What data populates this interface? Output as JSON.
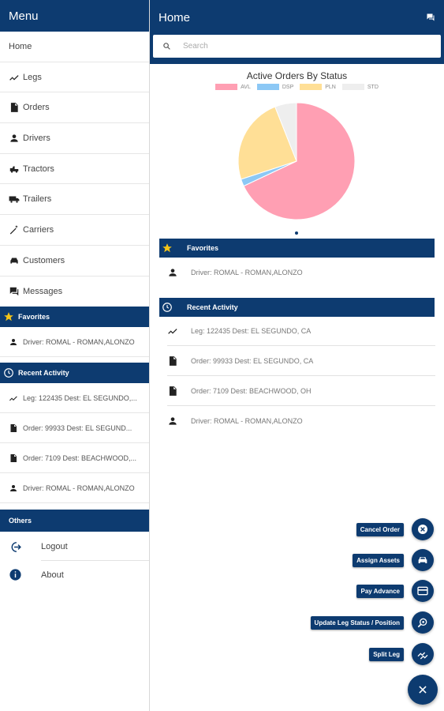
{
  "drawer": {
    "title": "Menu",
    "nav": [
      {
        "label": "Home",
        "icon": ""
      },
      {
        "label": "Legs",
        "icon": "trend-icon"
      },
      {
        "label": "Orders",
        "icon": "document-icon"
      },
      {
        "label": "Drivers",
        "icon": "person-icon"
      },
      {
        "label": "Tractors",
        "icon": "tractor-icon"
      },
      {
        "label": "Trailers",
        "icon": "truck-icon"
      },
      {
        "label": "Carriers",
        "icon": "wand-icon"
      },
      {
        "label": "Customers",
        "icon": "car-icon"
      },
      {
        "label": "Messages",
        "icon": "chat-icon"
      }
    ],
    "favorites": {
      "title": "Favorites",
      "items": [
        "Driver: ROMAL - ROMAN,ALONZO"
      ]
    },
    "recent": {
      "title": "Recent Activity",
      "items": [
        "Leg: 122435 Dest: EL SEGUNDO,...",
        "Order: 99933 Dest: EL SEGUND...",
        "Order: 7109 Dest: BEACHWOOD,...",
        "Driver: ROMAL - ROMAN,ALONZO"
      ]
    },
    "others": {
      "title": "Others",
      "items": [
        {
          "label": "Logout",
          "icon": "logout-icon"
        },
        {
          "label": "About",
          "icon": "info-icon"
        }
      ]
    }
  },
  "main": {
    "title": "Home",
    "search_placeholder": "Search",
    "favorites": {
      "title": "Favorites",
      "items": [
        "Driver: ROMAL - ROMAN,ALONZO"
      ]
    },
    "recent": {
      "title": "Recent Activity",
      "items": [
        "Leg: 122435 Dest: EL SEGUNDO, CA",
        "Order: 99933 Dest: EL SEGUNDO, CA",
        "Order: 7109 Dest: BEACHWOOD, OH",
        "Driver: ROMAL - ROMAN,ALONZO"
      ]
    }
  },
  "chart_data": {
    "type": "pie",
    "title": "Active Orders By Status",
    "legend_position": "top",
    "categories": [
      "AVL",
      "DSP",
      "PLN",
      "STD"
    ],
    "values": [
      68,
      2,
      24,
      6
    ],
    "colors": [
      "#ff9fb3",
      "#8cc8f5",
      "#ffdf96",
      "#eeeeee"
    ]
  },
  "speed_dial": [
    {
      "label": "Cancel Order",
      "icon": "cancel-icon"
    },
    {
      "label": "Assign Assets",
      "icon": "car-icon"
    },
    {
      "label": "Pay Advance",
      "icon": "card-icon"
    },
    {
      "label": "Update Leg Status / Position",
      "icon": "locate-icon"
    },
    {
      "label": "Split Leg",
      "icon": "split-icon"
    }
  ],
  "colors": {
    "primary": "#0d3b70",
    "star": "#f5c518"
  }
}
